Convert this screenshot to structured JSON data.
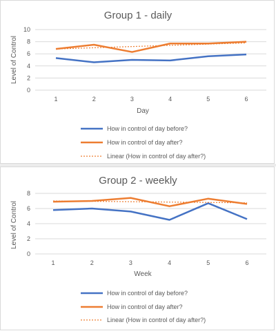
{
  "chart_data": [
    {
      "type": "line",
      "title": "Group 1 - daily",
      "xlabel": "Day",
      "ylabel": "Level of Control",
      "categories": [
        "1",
        "2",
        "3",
        "4",
        "5",
        "6"
      ],
      "ylim": [
        0,
        10
      ],
      "yticks": [
        "0",
        "2",
        "4",
        "6",
        "8",
        "10"
      ],
      "grid": true,
      "legend": "bottom",
      "series": [
        {
          "name": "How in control of day before?",
          "color": "#4472c4",
          "values": [
            5.3,
            4.6,
            5.0,
            4.9,
            5.6,
            5.9
          ]
        },
        {
          "name": "How in control of day after?",
          "color": "#ed7d31",
          "values": [
            6.8,
            7.5,
            6.3,
            7.7,
            7.7,
            8.0
          ]
        },
        {
          "name": "Linear (How in control of day after?)",
          "color": "#ed7d31",
          "dashed": true,
          "values": [
            6.8,
            7.0,
            7.2,
            7.4,
            7.6,
            7.8
          ]
        }
      ]
    },
    {
      "type": "line",
      "title": "Group 2 - weekly",
      "xlabel": "Week",
      "ylabel": "Level of Control",
      "categories": [
        "1",
        "2",
        "3",
        "4",
        "5",
        "6"
      ],
      "ylim": [
        0,
        8
      ],
      "yticks": [
        "0",
        "2",
        "4",
        "6",
        "8"
      ],
      "grid": true,
      "legend": "bottom",
      "series": [
        {
          "name": "How in control of day before?",
          "color": "#4472c4",
          "values": [
            5.8,
            6.0,
            5.6,
            4.5,
            6.7,
            4.6
          ]
        },
        {
          "name": "How in control of day after?",
          "color": "#ed7d31",
          "values": [
            6.9,
            7.0,
            7.4,
            6.3,
            7.3,
            6.6
          ]
        },
        {
          "name": "Linear (How in control of day after?)",
          "color": "#ed7d31",
          "dashed": true,
          "values": [
            7.0,
            6.95,
            6.9,
            6.85,
            6.8,
            6.75
          ]
        }
      ]
    }
  ]
}
